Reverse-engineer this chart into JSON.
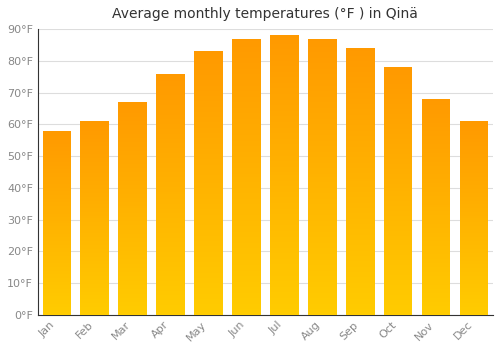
{
  "title": "Average monthly temperatures (°F ) in Qinä",
  "months": [
    "Jan",
    "Feb",
    "Mar",
    "Apr",
    "May",
    "Jun",
    "Jul",
    "Aug",
    "Sep",
    "Oct",
    "Nov",
    "Dec"
  ],
  "values": [
    58,
    61,
    67,
    76,
    83,
    87,
    88,
    87,
    84,
    78,
    68,
    61
  ],
  "ylim": [
    0,
    90
  ],
  "yticks": [
    0,
    10,
    20,
    30,
    40,
    50,
    60,
    70,
    80,
    90
  ],
  "ytick_labels": [
    "0°F",
    "10°F",
    "20°F",
    "30°F",
    "40°F",
    "50°F",
    "60°F",
    "70°F",
    "80°F",
    "90°F"
  ],
  "background_color": "#FFFFFF",
  "grid_color": "#DDDDDD",
  "title_fontsize": 10,
  "tick_fontsize": 8,
  "bar_color_bottom": "#FFCC00",
  "bar_color_top": "#FF9900",
  "bar_width": 0.75
}
